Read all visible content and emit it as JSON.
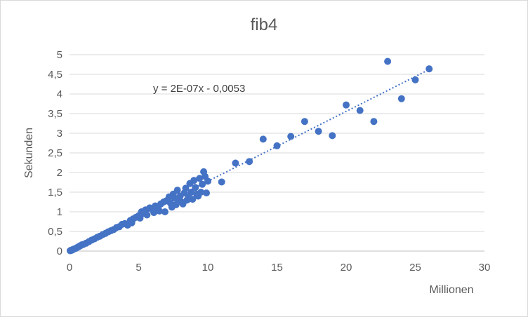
{
  "chart_data": {
    "type": "scatter",
    "title": "fib4",
    "xlabel": "Millionen",
    "ylabel": "Sekunden",
    "xlim": [
      0,
      30
    ],
    "ylim": [
      0,
      5
    ],
    "x_ticks": [
      "0",
      "5",
      "10",
      "15",
      "20",
      "25",
      "30"
    ],
    "y_ticks": [
      "0",
      "0,5",
      "1",
      "1,5",
      "2",
      "2,5",
      "3",
      "3,5",
      "4",
      "4,5",
      "5"
    ],
    "grid": "horizontal",
    "marker_color": "#4472c4",
    "trendline": {
      "type": "linear",
      "style": "dotted",
      "equation": "y = 2E-07x - 0,0053",
      "slope_per_million": 0.178,
      "intercept": -0.0053,
      "x_range": [
        0,
        26
      ]
    },
    "points": [
      [
        0.05,
        0.01
      ],
      [
        0.1,
        0.02
      ],
      [
        0.15,
        0.02
      ],
      [
        0.2,
        0.03
      ],
      [
        0.25,
        0.04
      ],
      [
        0.3,
        0.05
      ],
      [
        0.4,
        0.06
      ],
      [
        0.5,
        0.08
      ],
      [
        0.6,
        0.1
      ],
      [
        0.7,
        0.12
      ],
      [
        0.8,
        0.14
      ],
      [
        0.9,
        0.16
      ],
      [
        1.0,
        0.17
      ],
      [
        1.2,
        0.2
      ],
      [
        1.4,
        0.24
      ],
      [
        1.6,
        0.28
      ],
      [
        1.8,
        0.31
      ],
      [
        2.0,
        0.35
      ],
      [
        2.2,
        0.38
      ],
      [
        2.4,
        0.42
      ],
      [
        2.6,
        0.45
      ],
      [
        2.8,
        0.49
      ],
      [
        3.0,
        0.52
      ],
      [
        3.2,
        0.55
      ],
      [
        3.4,
        0.6
      ],
      [
        3.6,
        0.62
      ],
      [
        3.8,
        0.68
      ],
      [
        4.0,
        0.7
      ],
      [
        4.2,
        0.66
      ],
      [
        4.4,
        0.78
      ],
      [
        4.5,
        0.72
      ],
      [
        4.6,
        0.82
      ],
      [
        4.8,
        0.86
      ],
      [
        5.0,
        0.9
      ],
      [
        5.1,
        0.84
      ],
      [
        5.2,
        1.0
      ],
      [
        5.4,
        0.96
      ],
      [
        5.5,
        1.05
      ],
      [
        5.6,
        0.92
      ],
      [
        5.8,
        1.1
      ],
      [
        6.0,
        1.05
      ],
      [
        6.1,
        0.98
      ],
      [
        6.2,
        1.15
      ],
      [
        6.4,
        1.1
      ],
      [
        6.5,
        1.02
      ],
      [
        6.6,
        1.2
      ],
      [
        6.8,
        1.25
      ],
      [
        6.9,
        1.0
      ],
      [
        7.0,
        1.28
      ],
      [
        7.1,
        1.3
      ],
      [
        7.2,
        1.38
      ],
      [
        7.3,
        1.22
      ],
      [
        7.4,
        1.12
      ],
      [
        7.5,
        1.45
      ],
      [
        7.6,
        1.35
      ],
      [
        7.7,
        1.18
      ],
      [
        7.8,
        1.55
      ],
      [
        7.9,
        1.3
      ],
      [
        8.0,
        1.4
      ],
      [
        8.1,
        1.25
      ],
      [
        8.2,
        1.2
      ],
      [
        8.3,
        1.48
      ],
      [
        8.4,
        1.6
      ],
      [
        8.5,
        1.3
      ],
      [
        8.6,
        1.38
      ],
      [
        8.7,
        1.72
      ],
      [
        8.8,
        1.5
      ],
      [
        8.9,
        1.32
      ],
      [
        9.0,
        1.8
      ],
      [
        9.1,
        1.62
      ],
      [
        9.2,
        1.45
      ],
      [
        9.3,
        1.4
      ],
      [
        9.4,
        1.85
      ],
      [
        9.5,
        1.5
      ],
      [
        9.6,
        1.7
      ],
      [
        9.7,
        2.02
      ],
      [
        9.8,
        1.9
      ],
      [
        9.9,
        1.48
      ],
      [
        10.0,
        1.78
      ],
      [
        11,
        1.76
      ],
      [
        12,
        2.24
      ],
      [
        13,
        2.28
      ],
      [
        14,
        2.85
      ],
      [
        15,
        2.68
      ],
      [
        16,
        2.92
      ],
      [
        17,
        3.3
      ],
      [
        18,
        3.05
      ],
      [
        19,
        2.94
      ],
      [
        20,
        3.72
      ],
      [
        21,
        3.58
      ],
      [
        22,
        3.3
      ],
      [
        23,
        4.83
      ],
      [
        24,
        3.88
      ],
      [
        25,
        4.36
      ],
      [
        26,
        4.64
      ]
    ]
  }
}
